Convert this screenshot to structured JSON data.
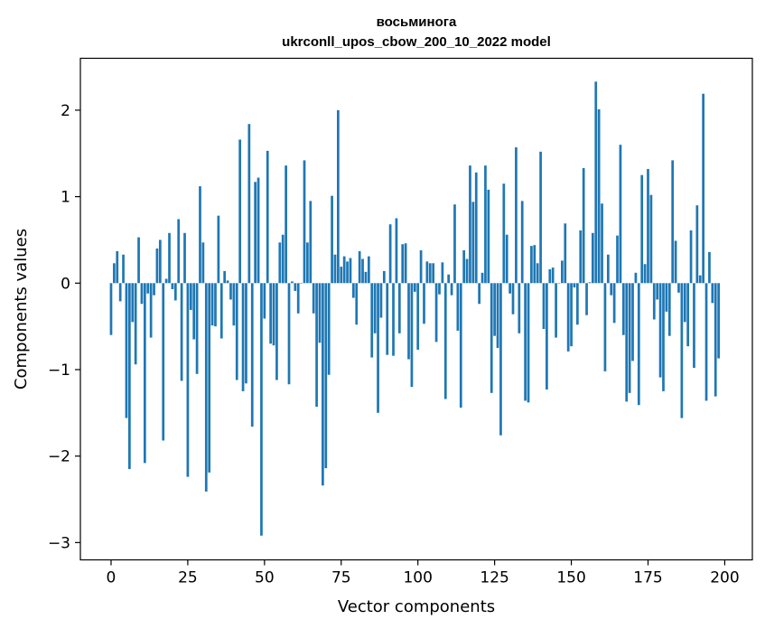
{
  "chart_data": {
    "type": "bar",
    "title_line1": "восьминога",
    "title_line2": "ukrconll_upos_cbow_200_10_2022 model",
    "xlabel": "Vector components",
    "ylabel": "Components values",
    "xlim": [
      -10,
      209
    ],
    "ylim": [
      -3.2,
      2.6
    ],
    "x_ticks": [
      0,
      25,
      50,
      75,
      100,
      125,
      150,
      175,
      200
    ],
    "y_ticks": [
      -3,
      -2,
      -1,
      0,
      1,
      2
    ],
    "y_tick_labels": [
      "−3",
      "−2",
      "−1",
      "0",
      "1",
      "2"
    ],
    "bar_color": "#1f77b4",
    "grid": false,
    "values": [
      -0.6,
      0.23,
      0.37,
      -0.21,
      0.33,
      -1.56,
      -2.15,
      -0.45,
      -0.94,
      0.53,
      -0.24,
      -2.08,
      -0.12,
      -0.63,
      -0.14,
      0.4,
      0.5,
      -1.82,
      0.05,
      0.58,
      -0.07,
      -0.2,
      0.74,
      -1.13,
      0.58,
      -2.24,
      -0.31,
      -0.65,
      -1.05,
      1.12,
      0.47,
      -2.41,
      -2.19,
      -0.49,
      -0.5,
      0.78,
      -0.64,
      0.14,
      0.03,
      -0.19,
      -0.49,
      -1.12,
      1.66,
      -1.25,
      -1.16,
      1.84,
      -1.66,
      1.17,
      1.22,
      -2.92,
      -0.41,
      1.53,
      -0.7,
      -0.72,
      -1.12,
      0.47,
      0.56,
      1.36,
      -1.17,
      0.02,
      -0.09,
      -0.35,
      0.0,
      1.42,
      0.47,
      0.95,
      -0.35,
      -1.43,
      -0.69,
      -2.34,
      -2.14,
      -1.06,
      1.01,
      0.33,
      2.0,
      0.19,
      0.31,
      0.25,
      0.29,
      -0.17,
      -0.48,
      0.37,
      0.28,
      0.13,
      0.31,
      -0.86,
      -0.58,
      -1.5,
      -0.4,
      0.14,
      -0.83,
      0.68,
      -0.84,
      0.75,
      -0.58,
      0.45,
      0.46,
      -0.88,
      -1.2,
      -0.1,
      -0.77,
      0.38,
      -0.47,
      0.25,
      0.23,
      0.23,
      -0.68,
      -0.13,
      0.24,
      -1.34,
      0.1,
      -0.14,
      0.91,
      -0.55,
      -1.44,
      0.38,
      0.28,
      1.36,
      0.94,
      1.28,
      -0.24,
      0.12,
      1.36,
      1.08,
      -1.27,
      -0.61,
      -0.75,
      -1.76,
      1.15,
      0.56,
      -0.12,
      -0.36,
      1.57,
      -0.58,
      0.95,
      -1.36,
      -1.38,
      0.43,
      0.44,
      0.23,
      1.52,
      -0.53,
      -1.23,
      0.16,
      0.18,
      -0.63,
      0.0,
      0.26,
      0.69,
      -0.79,
      -0.73,
      -0.05,
      -0.48,
      0.61,
      1.33,
      -0.37,
      0.01,
      0.58,
      2.33,
      2.01,
      0.92,
      -1.02,
      0.33,
      -0.14,
      -0.46,
      0.55,
      1.6,
      -0.6,
      -1.37,
      -1.27,
      -0.9,
      0.12,
      -1.41,
      1.25,
      0.22,
      1.32,
      1.02,
      -0.42,
      -0.19,
      -1.09,
      -1.25,
      -0.33,
      -0.61,
      1.42,
      0.49,
      -0.11,
      -1.56,
      -0.45,
      -0.73,
      0.61,
      -0.98,
      0.9,
      0.09,
      2.19,
      -1.36,
      0.36,
      -0.23,
      -1.31,
      -0.87
    ]
  }
}
